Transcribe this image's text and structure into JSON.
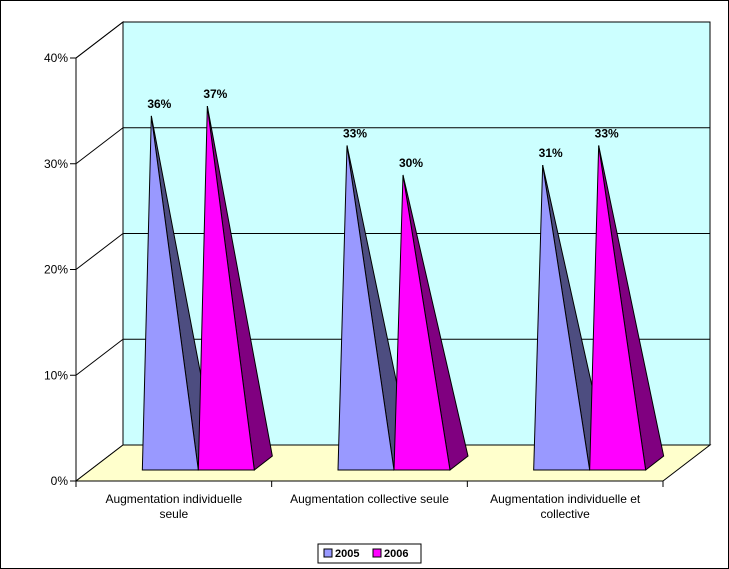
{
  "chart_data": {
    "type": "bar",
    "style": "3d-pyramid",
    "categories": [
      [
        "Augmentation individuelle",
        "seule"
      ],
      [
        "Augmentation collective seule"
      ],
      [
        "Augmentation individuelle et",
        "collective"
      ]
    ],
    "series": [
      {
        "name": "2005",
        "values": [
          36,
          33,
          31
        ],
        "labels": [
          "36%",
          "33%",
          "31%"
        ],
        "color": "#9999ff",
        "shade": "#4d4d80"
      },
      {
        "name": "2006",
        "values": [
          37,
          30,
          33
        ],
        "labels": [
          "37%",
          "30%",
          "33%"
        ],
        "color": "#ff00ff",
        "shade": "#800080"
      }
    ],
    "yticks": [
      "0%",
      "10%",
      "20%",
      "30%",
      "40%"
    ],
    "ylim": [
      0,
      40
    ],
    "grid": true,
    "legend": "bottom-center",
    "wall_color": "#ccffff",
    "floor_color": "#ffffcc"
  }
}
